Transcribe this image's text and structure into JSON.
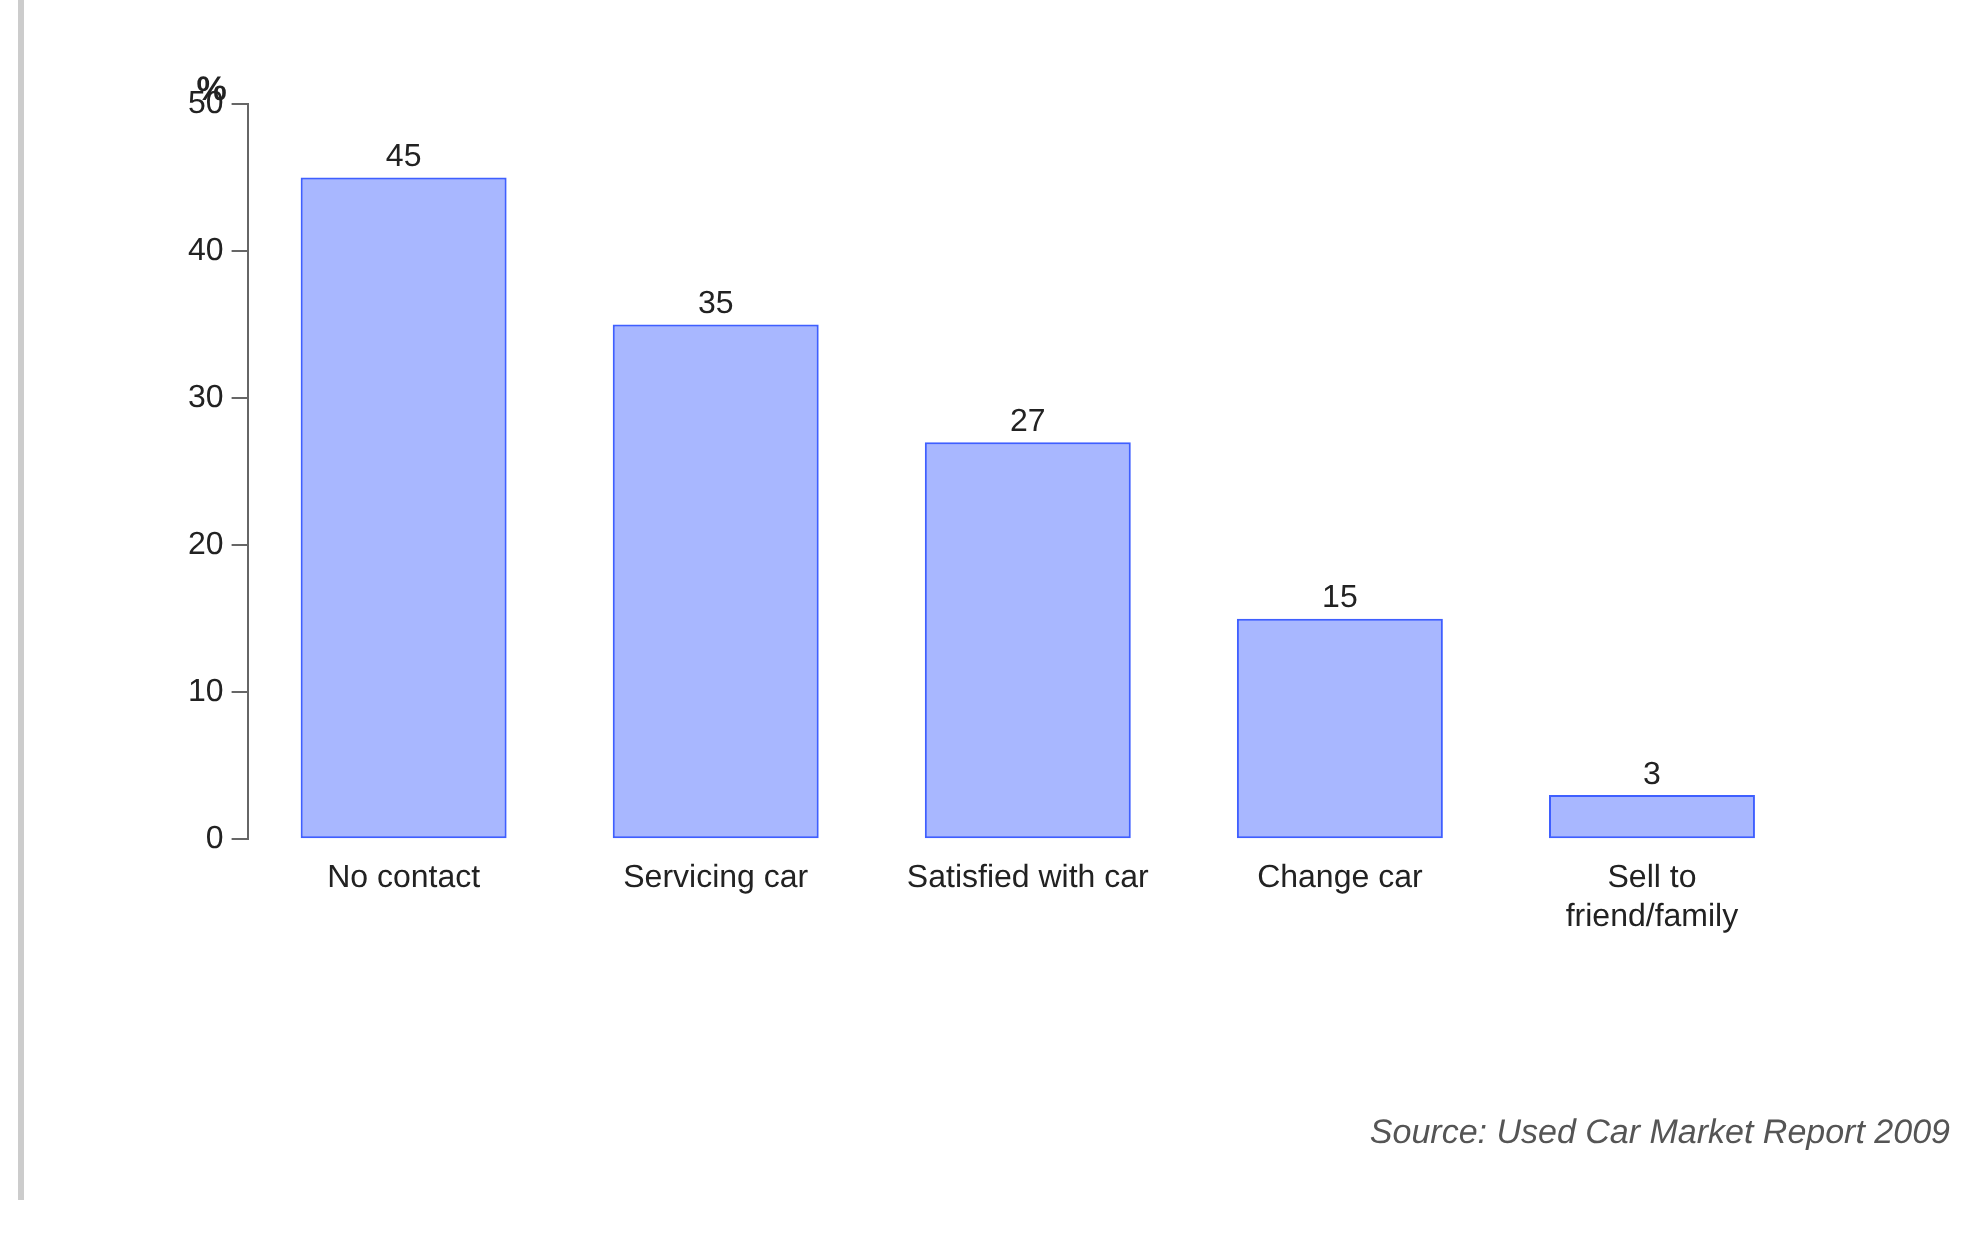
{
  "chart_data": {
    "type": "bar",
    "ylabel": "%",
    "categories": [
      "No contact",
      "Servicing car",
      "Satisfied with car",
      "Change car",
      "Sell to friend/family"
    ],
    "values": [
      45,
      35,
      27,
      15,
      3
    ],
    "color": "#3f5fff",
    "ylim": [
      0,
      50
    ],
    "yticks": [
      0,
      10,
      20,
      30,
      40,
      50
    ],
    "grid": false,
    "data_labels": true,
    "annotations": [
      "Source: Used Car Market Report 2009"
    ]
  }
}
